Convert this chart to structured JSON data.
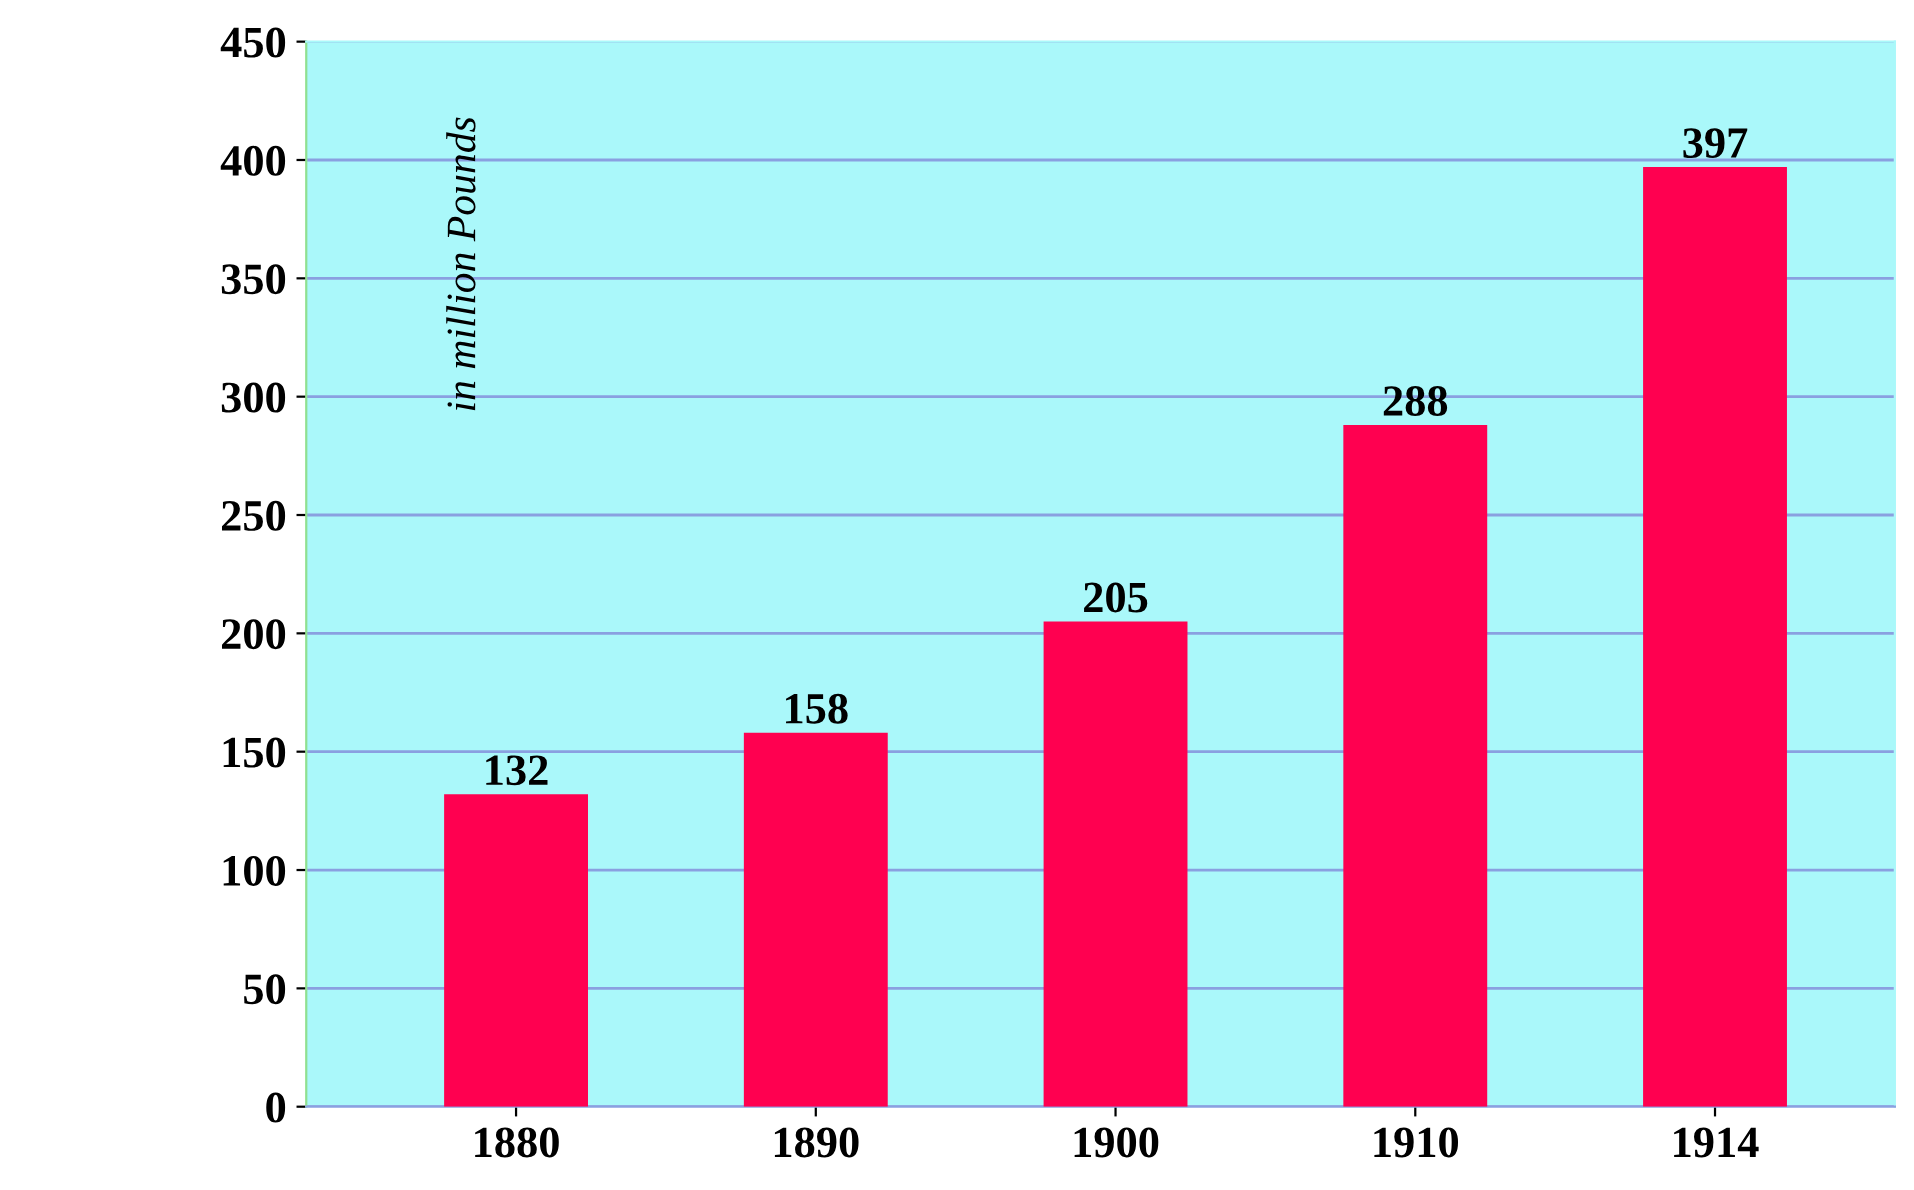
{
  "chart_data": {
    "type": "bar",
    "ylabel": "in million Pounds",
    "categories": [
      "1880",
      "1890",
      "1900",
      "1910",
      "1914"
    ],
    "values": [
      132,
      158,
      205,
      288,
      397
    ],
    "color": "#ff0050",
    "ylim": [
      0,
      450
    ],
    "yticks": [
      0,
      50,
      100,
      150,
      200,
      250,
      300,
      350,
      400,
      450
    ],
    "grid": "y",
    "data_labels": true,
    "legend": false
  }
}
